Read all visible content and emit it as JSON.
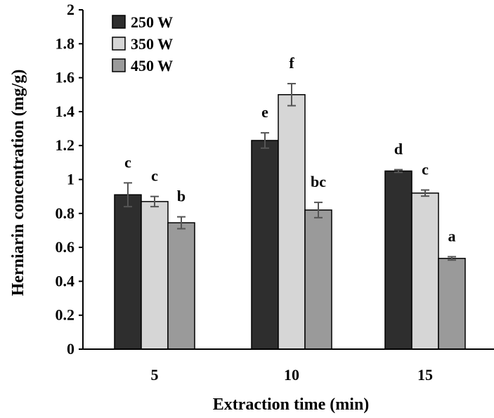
{
  "chart_data": {
    "type": "bar",
    "title": "",
    "xlabel": "Extraction time (min)",
    "ylabel": "Herniarin concentration (mg/g)",
    "ylim": [
      0,
      2
    ],
    "yticks": [
      0,
      0.2,
      0.4,
      0.6,
      0.8,
      1,
      1.2,
      1.4,
      1.6,
      1.8,
      2
    ],
    "ytick_labels": [
      "0",
      "0.2",
      "0.4",
      "0.6",
      "0.8",
      "1",
      "1.2",
      "1.4",
      "1.6",
      "1.8",
      "2"
    ],
    "categories": [
      "5",
      "10",
      "15"
    ],
    "legend_position": "top-left",
    "grid": false,
    "series": [
      {
        "name": "250 W",
        "color": "#2e2e2e",
        "values": [
          0.91,
          1.23,
          1.05
        ],
        "errors": [
          0.07,
          0.045,
          0.008
        ],
        "labels": [
          "c",
          "e",
          "d"
        ]
      },
      {
        "name": "350 W",
        "color": "#d6d6d6",
        "values": [
          0.87,
          1.5,
          0.92
        ],
        "errors": [
          0.03,
          0.065,
          0.018
        ],
        "labels": [
          "c",
          "f",
          "c"
        ]
      },
      {
        "name": "450 W",
        "color": "#9a9a9a",
        "values": [
          0.745,
          0.82,
          0.535
        ],
        "errors": [
          0.035,
          0.045,
          0.01
        ],
        "labels": [
          "b",
          "bc",
          "a"
        ]
      }
    ]
  }
}
